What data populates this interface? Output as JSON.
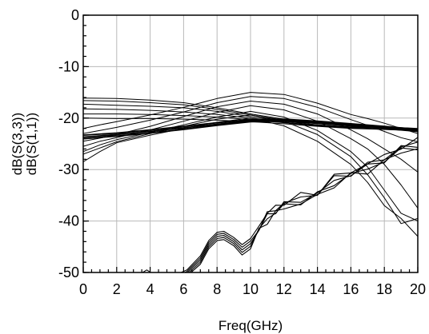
{
  "chart_data": {
    "type": "line",
    "xlabel": "Freq(GHz)",
    "ylabel_lines": [
      "dB(S(3,3))",
      "dB(S(1,1))"
    ],
    "xlim": [
      0,
      20
    ],
    "ylim": [
      -50,
      0
    ],
    "x_ticks": [
      0,
      2,
      4,
      6,
      8,
      10,
      12,
      14,
      16,
      18,
      20
    ],
    "x_tick_labels": [
      "0",
      "2",
      "4",
      "6",
      "8",
      "10",
      "12",
      "14",
      "16",
      "18",
      "20"
    ],
    "y_ticks": [
      0,
      -10,
      -20,
      -30,
      -40,
      -50
    ],
    "y_tick_labels": [
      "0",
      "-10",
      "-20",
      "-30",
      "-40",
      "-50"
    ],
    "grid": true,
    "line_color": "#000000",
    "grid_color": "#b9b9b9",
    "series_groups": {
      "s33_flat": {
        "x": [
          0,
          2,
          4,
          6,
          8,
          10,
          12,
          14,
          16,
          18,
          20
        ],
        "curves": [
          [
            -16.1,
            -16.2,
            -16.5,
            -17,
            -18,
            -19.2,
            -20.2,
            -20.9,
            -21.3,
            -21.7,
            -22.0
          ],
          [
            -16.6,
            -16.7,
            -17.0,
            -17.4,
            -18.3,
            -19.4,
            -20.4,
            -21.1,
            -21.5,
            -21.8,
            -22.1
          ],
          [
            -17.3,
            -17.5,
            -17.7,
            -18.0,
            -18.7,
            -19.7,
            -20.6,
            -21.3,
            -21.7,
            -22.0,
            -22.2
          ],
          [
            -18.2,
            -18.3,
            -18.5,
            -18.8,
            -19.3,
            -20.0,
            -20.8,
            -21.4,
            -21.8,
            -22.0,
            -22.3
          ],
          [
            -19.2,
            -19.2,
            -19.3,
            -19.5,
            -19.8,
            -20.3,
            -20.9,
            -21.5,
            -21.9,
            -22.2,
            -22.4
          ],
          [
            -20.0,
            -20.1,
            -20.1,
            -20.2,
            -20.4,
            -20.7,
            -21.1,
            -21.6,
            -22.0,
            -22.2,
            -22.5
          ]
        ]
      },
      "s33_thick": {
        "x": [
          0,
          2,
          4,
          6,
          8,
          10,
          12,
          14,
          16,
          18,
          20
        ],
        "curves": [
          [
            -23.3,
            -22.9,
            -22.3,
            -21.6,
            -20.9,
            -20.3,
            -20.2,
            -20.6,
            -21.1,
            -21.6,
            -22.2
          ],
          [
            -23.7,
            -23.2,
            -22.6,
            -21.9,
            -21.2,
            -20.5,
            -20.4,
            -20.8,
            -21.3,
            -21.8,
            -22.4
          ],
          [
            -24.0,
            -23.5,
            -22.9,
            -22.2,
            -21.4,
            -20.7,
            -20.6,
            -21.0,
            -21.5,
            -22.0,
            -22.6
          ]
        ]
      },
      "s33_humped": {
        "x": [
          0,
          1,
          2,
          4,
          6,
          8,
          10,
          12,
          14,
          16,
          17,
          18,
          19,
          20
        ],
        "curves": [
          [
            -22.0,
            -21.3,
            -20.7,
            -19.4,
            -17.9,
            -16.2,
            -15.0,
            -15.4,
            -17.1,
            -19.3,
            -20.1,
            -21.0,
            -22.0,
            -23.0
          ],
          [
            -23.0,
            -22.4,
            -21.8,
            -20.4,
            -18.8,
            -17.0,
            -15.8,
            -16.2,
            -17.9,
            -20.3,
            -21.4,
            -22.6,
            -23.8,
            -24.6
          ],
          [
            -24.5,
            -23.9,
            -23.2,
            -21.6,
            -19.7,
            -17.8,
            -16.7,
            -17.3,
            -19.2,
            -22.3,
            -24.0,
            -26.0,
            -28.0,
            -30.5
          ],
          [
            -25.5,
            -24.5,
            -23.8,
            -22.3,
            -20.6,
            -18.9,
            -17.6,
            -18.4,
            -20.6,
            -24.0,
            -26.0,
            -29.0,
            -33.0,
            -37.5
          ],
          [
            -26.5,
            -25.2,
            -24.2,
            -22.8,
            -21.3,
            -19.8,
            -18.7,
            -19.8,
            -22.4,
            -26.5,
            -29.5,
            -34.0,
            -38.5,
            -40.0
          ],
          [
            -28.5,
            -26.5,
            -24.8,
            -23.3,
            -22.0,
            -20.8,
            -20.0,
            -21.5,
            -24.5,
            -29.0,
            -32.5,
            -37.0,
            -39.5,
            -43.0
          ],
          [
            -27.0,
            -25.8,
            -24.6,
            -23.0,
            -21.6,
            -20.2,
            -19.4,
            -20.6,
            -23.2,
            -27.5,
            -31.0,
            -35.5,
            -40.5,
            -39.5
          ]
        ]
      },
      "s11": {
        "x": [
          2.0,
          3.3,
          3.8,
          4.5,
          5.5,
          6.2,
          7.0,
          7.5,
          8.0,
          8.4,
          9.0,
          9.5,
          10.0,
          10.5,
          11.0,
          11.5,
          12.0,
          13.0,
          14.0,
          15.0,
          16.0,
          17.0,
          18.0,
          19.0,
          20.0
        ],
        "curves": [
          [
            -51.5,
            -50.5,
            -49.5,
            -51,
            -50.5,
            -49.5,
            -46.8,
            -43.8,
            -42.2,
            -42.0,
            -43.2,
            -44.6,
            -43.4,
            -40.6,
            -38.6,
            -37.2,
            -36.4,
            -35.2,
            -34.2,
            -31.6,
            -30.2,
            -29.0,
            -27.3,
            -25.5,
            -24.5
          ],
          [
            -51.5,
            -51,
            -50,
            -51.2,
            -50.8,
            -49.8,
            -47.2,
            -44.2,
            -42.6,
            -42.4,
            -43.6,
            -45.1,
            -43.9,
            -41.0,
            -38.9,
            -37.5,
            -36.7,
            -35.5,
            -34.5,
            -31.9,
            -30.5,
            -29.3,
            -27.6,
            -25.8,
            -24.8
          ],
          [
            -51.5,
            -51.2,
            -50.5,
            -51.4,
            -51,
            -50.1,
            -47.6,
            -44.6,
            -43.0,
            -42.8,
            -44.0,
            -45.6,
            -44.4,
            -41.4,
            -39.3,
            -37.8,
            -37.0,
            -35.8,
            -34.8,
            -32.2,
            -30.8,
            -29.6,
            -27.9,
            -26.1,
            -25.1
          ],
          [
            -51.5,
            -51.4,
            -50.8,
            -51.6,
            -51.2,
            -50.4,
            -48.0,
            -45.0,
            -43.4,
            -43.2,
            -44.4,
            -46.1,
            -44.9,
            -41.8,
            -39.6,
            -38.1,
            -37.3,
            -36.1,
            -35.1,
            -32.5,
            -31.1,
            -29.9,
            -28.2,
            -26.4,
            -25.4
          ],
          [
            -51.5,
            -51.6,
            -51,
            -51.8,
            -51.4,
            -50.7,
            -48.4,
            -45.4,
            -43.8,
            -43.6,
            -44.8,
            -46.6,
            -45.4,
            -42.2,
            -40.0,
            -38.4,
            -37.6,
            -36.4,
            -35.4,
            -32.8,
            -31.4,
            -30.2,
            -28.5,
            -26.7,
            -25.7
          ]
        ]
      }
    }
  }
}
